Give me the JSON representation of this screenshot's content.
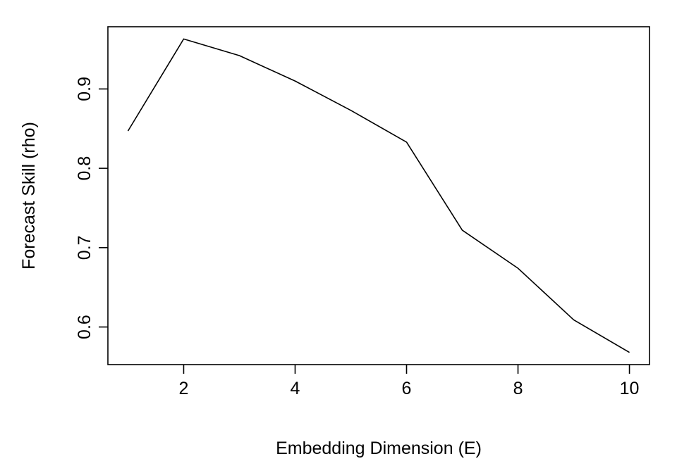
{
  "chart_data": {
    "type": "line",
    "title": "",
    "xlabel": "Embedding Dimension (E)",
    "ylabel": "Forecast Skill (rho)",
    "x": [
      1,
      2,
      3,
      4,
      5,
      6,
      7,
      8,
      9,
      10
    ],
    "series": [
      {
        "values": [
          0.847,
          0.963,
          0.942,
          0.91,
          0.873,
          0.833,
          0.722,
          0.674,
          0.609,
          0.568
        ]
      }
    ],
    "xlim": [
      0.64,
      10.36
    ],
    "ylim": [
      0.5526,
      0.9784
    ],
    "xticks": [
      2,
      4,
      6,
      8,
      10
    ],
    "yticks": [
      0.6,
      0.7,
      0.8,
      0.9
    ],
    "xtick_labels": [
      "2",
      "4",
      "6",
      "8",
      "10"
    ],
    "ytick_labels": [
      "0.6",
      "0.7",
      "0.8",
      "0.9"
    ],
    "grid": false,
    "line_color": "#000000"
  }
}
